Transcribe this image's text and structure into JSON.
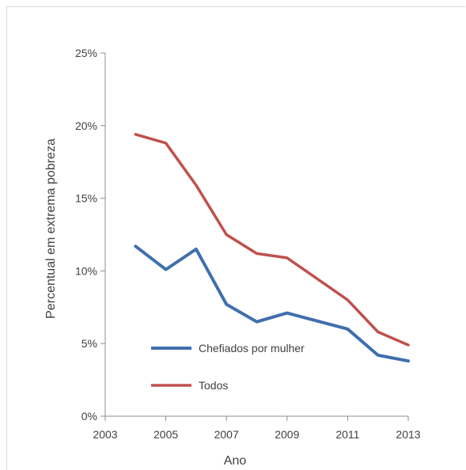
{
  "chart_data": {
    "type": "line",
    "xlabel": "Ano",
    "ylabel": "Percentual em extrema pobreza",
    "xlim": [
      2003,
      2013
    ],
    "ylim": [
      0,
      25
    ],
    "x_ticks": [
      2003,
      2005,
      2007,
      2009,
      2011,
      2013
    ],
    "y_ticks": [
      0,
      5,
      10,
      15,
      20,
      25
    ],
    "y_tick_labels": [
      "0%",
      "5%",
      "10%",
      "15%",
      "20%",
      "25%"
    ],
    "grid": false,
    "legend_position": "inside-bottom-left",
    "series": [
      {
        "name": "Chefiados por mulher",
        "color": "#3f6fae",
        "x": [
          2004,
          2005,
          2006,
          2007,
          2008,
          2009,
          2011,
          2012,
          2013
        ],
        "values": [
          11.7,
          10.1,
          11.5,
          7.7,
          6.5,
          7.1,
          6.0,
          4.2,
          3.8
        ]
      },
      {
        "name": "Todos",
        "color": "#c0504d",
        "x": [
          2004,
          2005,
          2006,
          2007,
          2008,
          2009,
          2011,
          2012,
          2013
        ],
        "values": [
          19.4,
          18.8,
          15.9,
          12.5,
          11.2,
          10.9,
          8.0,
          5.8,
          4.9
        ]
      }
    ]
  }
}
